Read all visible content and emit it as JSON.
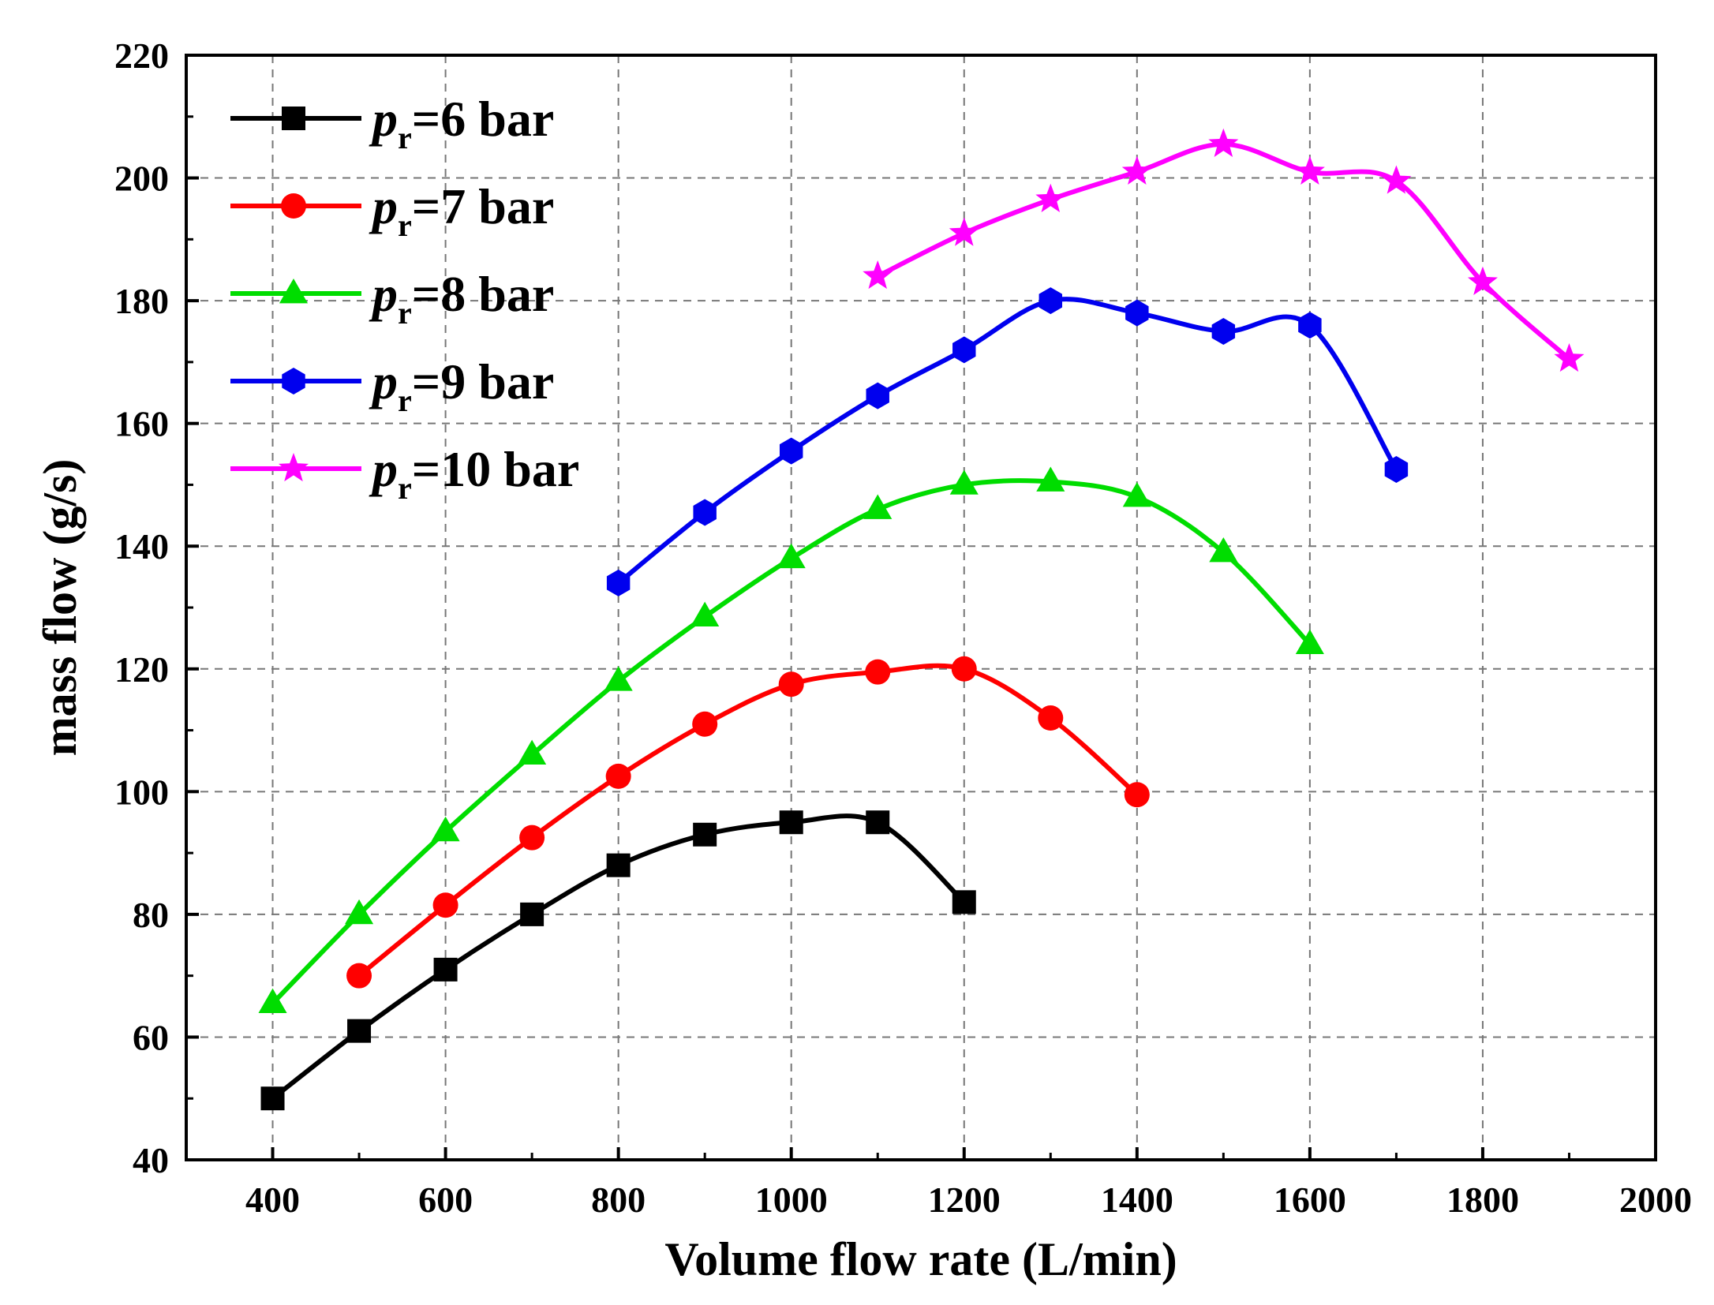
{
  "chart_data": {
    "type": "line",
    "title": "",
    "xlabel": "Volume flow rate (L/min)",
    "ylabel": "mass flow (g/s)",
    "xlim": [
      300,
      2000
    ],
    "ylim": [
      40,
      220
    ],
    "xticks": [
      400,
      600,
      800,
      1000,
      1200,
      1400,
      1600,
      1800,
      2000
    ],
    "yticks": [
      40,
      60,
      80,
      100,
      120,
      140,
      160,
      180,
      200,
      220
    ],
    "grid": true,
    "legend_position": "top-left",
    "series": [
      {
        "name": "pr=6 bar",
        "legend_symbol": "p",
        "legend_subscript": "r",
        "legend_suffix": "=6 bar",
        "color": "#000000",
        "marker": "square",
        "x": [
          400,
          500,
          600,
          700,
          800,
          900,
          1000,
          1100,
          1200
        ],
        "y": [
          50,
          61,
          71,
          80,
          88,
          93,
          95,
          95,
          82
        ]
      },
      {
        "name": "pr=7 bar",
        "legend_symbol": "p",
        "legend_subscript": "r",
        "legend_suffix": "=7 bar",
        "color": "#ff0000",
        "marker": "circle",
        "x": [
          500,
          600,
          700,
          800,
          900,
          1000,
          1100,
          1200,
          1300,
          1400
        ],
        "y": [
          70,
          81.5,
          92.5,
          102.5,
          111,
          117.5,
          119.5,
          120,
          112,
          99.5
        ]
      },
      {
        "name": "pr=8 bar",
        "legend_symbol": "p",
        "legend_subscript": "r",
        "legend_suffix": "=8 bar",
        "color": "#00dd00",
        "marker": "triangle",
        "x": [
          400,
          500,
          600,
          700,
          800,
          900,
          1000,
          1100,
          1200,
          1300,
          1400,
          1500,
          1600
        ],
        "y": [
          65.5,
          80,
          93.5,
          106,
          118,
          128.5,
          138,
          146,
          150,
          150.5,
          148,
          139,
          124
        ]
      },
      {
        "name": "pr=9 bar",
        "legend_symbol": "p",
        "legend_subscript": "r",
        "legend_suffix": "=9 bar",
        "color": "#0000ee",
        "marker": "hexagon",
        "x": [
          800,
          900,
          1000,
          1100,
          1200,
          1300,
          1400,
          1500,
          1600,
          1700
        ],
        "y": [
          134,
          145.5,
          155.5,
          164.5,
          172,
          180,
          178,
          175,
          176,
          152.5
        ]
      },
      {
        "name": "pr=10 bar",
        "legend_symbol": "p",
        "legend_subscript": "r",
        "legend_suffix": "=10 bar",
        "color": "#ff00ff",
        "marker": "star",
        "x": [
          1100,
          1200,
          1300,
          1400,
          1500,
          1600,
          1700,
          1800,
          1900
        ],
        "y": [
          184,
          191,
          196.5,
          201,
          205.5,
          201,
          199.5,
          183,
          170.5
        ]
      }
    ]
  }
}
